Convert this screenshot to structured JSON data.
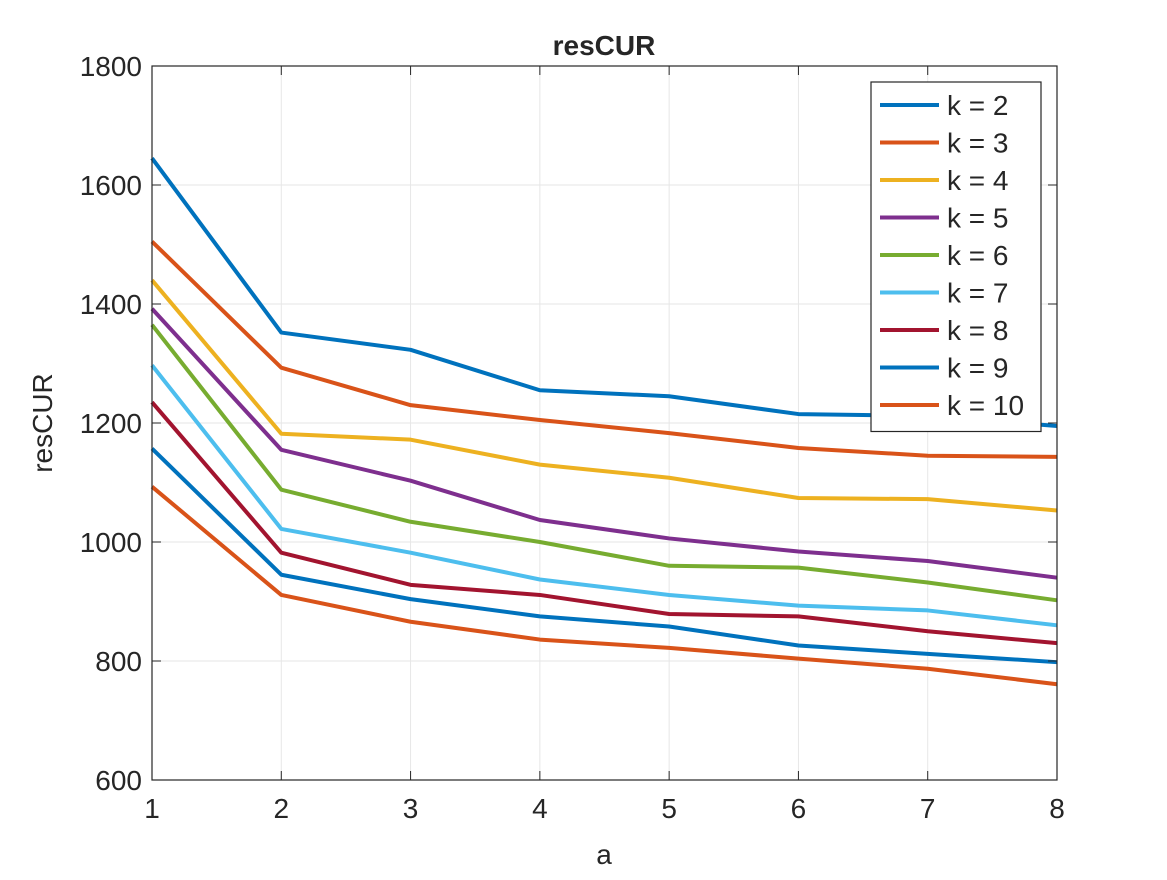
{
  "chart_data": {
    "type": "line",
    "title": "resCUR",
    "xlabel": "a",
    "ylabel": "resCUR",
    "xlim": [
      1,
      8
    ],
    "ylim": [
      600,
      1800
    ],
    "xticks": [
      "1",
      "2",
      "3",
      "4",
      "5",
      "6",
      "7",
      "8"
    ],
    "yticks": [
      "600",
      "800",
      "1000",
      "1200",
      "1400",
      "1600",
      "1800"
    ],
    "grid": true,
    "legend_position": "top-right",
    "x": [
      1,
      2,
      3,
      4,
      5,
      6,
      7,
      8
    ],
    "series": [
      {
        "name": "k = 2",
        "color": "#0072BD",
        "values": [
          1645,
          1352,
          1323,
          1255,
          1245,
          1215,
          1212,
          1195
        ]
      },
      {
        "name": "k = 3",
        "color": "#D95319",
        "values": [
          1505,
          1293,
          1230,
          1205,
          1183,
          1158,
          1145,
          1143
        ]
      },
      {
        "name": "k = 4",
        "color": "#EDB120",
        "values": [
          1440,
          1182,
          1172,
          1130,
          1108,
          1074,
          1072,
          1053
        ]
      },
      {
        "name": "k = 5",
        "color": "#7E2F8E",
        "values": [
          1392,
          1155,
          1103,
          1037,
          1006,
          984,
          968,
          940
        ]
      },
      {
        "name": "k = 6",
        "color": "#77AC30",
        "values": [
          1365,
          1088,
          1034,
          1000,
          960,
          957,
          932,
          902
        ]
      },
      {
        "name": "k = 7",
        "color": "#4DBEEE",
        "values": [
          1297,
          1022,
          982,
          937,
          911,
          893,
          885,
          860
        ]
      },
      {
        "name": "k = 8",
        "color": "#A2142F",
        "values": [
          1235,
          982,
          928,
          911,
          879,
          875,
          850,
          830
        ]
      },
      {
        "name": "k = 9",
        "color": "#0072BD",
        "values": [
          1157,
          945,
          904,
          875,
          858,
          826,
          812,
          798
        ]
      },
      {
        "name": "k = 10",
        "color": "#D95319",
        "values": [
          1093,
          911,
          866,
          836,
          822,
          804,
          787,
          761
        ]
      }
    ]
  }
}
